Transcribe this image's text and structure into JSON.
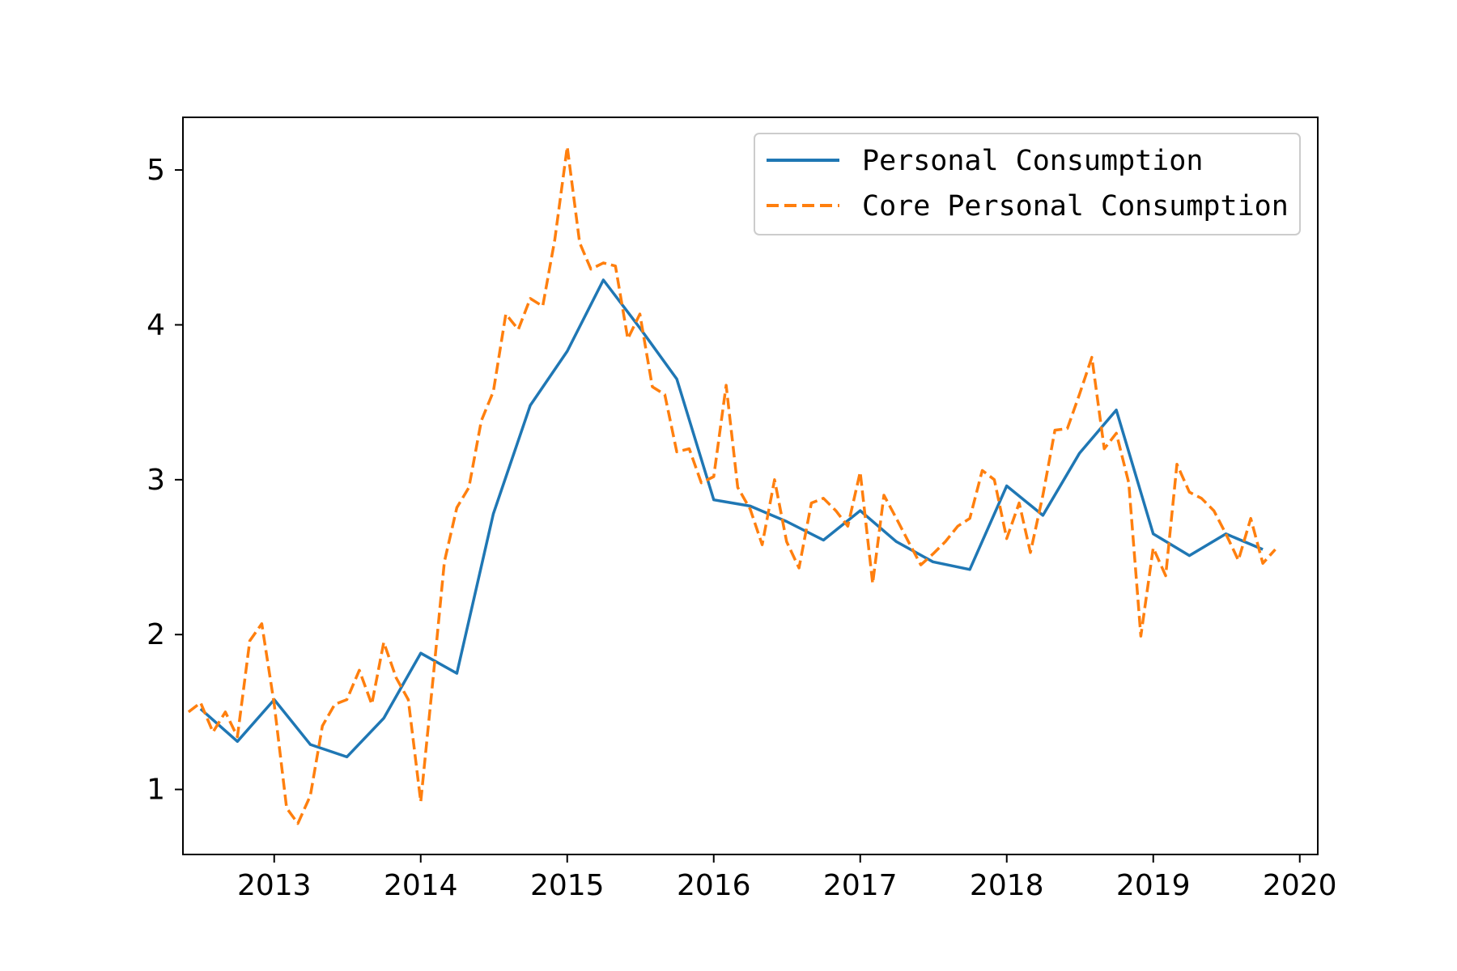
{
  "chart_data": {
    "type": "line",
    "title": "",
    "xlabel": "",
    "ylabel": "",
    "xlim": [
      "2012-05-18",
      "2020-02-15"
    ],
    "ylim": [
      0.58,
      5.34
    ],
    "xticks": [
      "2013",
      "2014",
      "2015",
      "2016",
      "2017",
      "2018",
      "2019",
      "2020"
    ],
    "yticks": [
      "1",
      "2",
      "3",
      "4",
      "5"
    ],
    "grid": false,
    "legend_position": "top-right",
    "series": [
      {
        "name": "Personal Consumption",
        "color": "#1f77b4",
        "style": "solid",
        "points": [
          [
            "2012-07-01",
            1.52
          ],
          [
            "2012-10-01",
            1.31
          ],
          [
            "2013-01-01",
            1.58
          ],
          [
            "2013-04-01",
            1.29
          ],
          [
            "2013-07-01",
            1.21
          ],
          [
            "2013-10-01",
            1.46
          ],
          [
            "2014-01-01",
            1.88
          ],
          [
            "2014-04-01",
            1.75
          ],
          [
            "2014-07-01",
            2.78
          ],
          [
            "2014-10-01",
            3.48
          ],
          [
            "2015-01-01",
            3.83
          ],
          [
            "2015-04-01",
            4.29
          ],
          [
            "2015-07-01",
            3.98
          ],
          [
            "2015-10-01",
            3.65
          ],
          [
            "2016-01-01",
            2.87
          ],
          [
            "2016-04-01",
            2.83
          ],
          [
            "2016-07-01",
            2.73
          ],
          [
            "2016-10-01",
            2.61
          ],
          [
            "2017-01-01",
            2.8
          ],
          [
            "2017-04-01",
            2.6
          ],
          [
            "2017-07-01",
            2.47
          ],
          [
            "2017-10-01",
            2.42
          ],
          [
            "2018-01-01",
            2.96
          ],
          [
            "2018-04-01",
            2.77
          ],
          [
            "2018-07-01",
            3.17
          ],
          [
            "2018-10-01",
            3.45
          ],
          [
            "2019-01-01",
            2.65
          ],
          [
            "2019-04-01",
            2.51
          ],
          [
            "2019-07-01",
            2.65
          ],
          [
            "2019-10-01",
            2.55
          ]
        ]
      },
      {
        "name": "Core Personal Consumption",
        "color": "#ff7f0e",
        "style": "dashed",
        "points": [
          [
            "2012-06-01",
            1.5
          ],
          [
            "2012-07-01",
            1.56
          ],
          [
            "2012-08-01",
            1.37
          ],
          [
            "2012-09-01",
            1.5
          ],
          [
            "2012-10-01",
            1.34
          ],
          [
            "2012-11-01",
            1.96
          ],
          [
            "2012-12-01",
            2.07
          ],
          [
            "2013-01-01",
            1.55
          ],
          [
            "2013-02-01",
            0.88
          ],
          [
            "2013-03-01",
            0.78
          ],
          [
            "2013-04-01",
            0.96
          ],
          [
            "2013-05-01",
            1.41
          ],
          [
            "2013-06-01",
            1.55
          ],
          [
            "2013-07-01",
            1.58
          ],
          [
            "2013-08-01",
            1.77
          ],
          [
            "2013-09-01",
            1.55
          ],
          [
            "2013-10-01",
            1.95
          ],
          [
            "2013-11-01",
            1.72
          ],
          [
            "2013-12-01",
            1.58
          ],
          [
            "2014-01-01",
            0.92
          ],
          [
            "2014-02-01",
            1.72
          ],
          [
            "2014-03-01",
            2.47
          ],
          [
            "2014-04-01",
            2.82
          ],
          [
            "2014-05-01",
            2.95
          ],
          [
            "2014-06-01",
            3.38
          ],
          [
            "2014-07-01",
            3.57
          ],
          [
            "2014-08-01",
            4.07
          ],
          [
            "2014-09-01",
            3.97
          ],
          [
            "2014-10-01",
            4.17
          ],
          [
            "2014-11-01",
            4.12
          ],
          [
            "2014-12-01",
            4.55
          ],
          [
            "2015-01-01",
            5.15
          ],
          [
            "2015-02-01",
            4.53
          ],
          [
            "2015-03-01",
            4.36
          ],
          [
            "2015-04-01",
            4.4
          ],
          [
            "2015-05-01",
            4.38
          ],
          [
            "2015-06-01",
            3.91
          ],
          [
            "2015-07-01",
            4.07
          ],
          [
            "2015-08-01",
            3.6
          ],
          [
            "2015-09-01",
            3.55
          ],
          [
            "2015-10-01",
            3.18
          ],
          [
            "2015-11-01",
            3.2
          ],
          [
            "2015-12-01",
            2.98
          ],
          [
            "2016-01-01",
            3.02
          ],
          [
            "2016-02-01",
            3.61
          ],
          [
            "2016-03-01",
            2.95
          ],
          [
            "2016-04-01",
            2.81
          ],
          [
            "2016-05-01",
            2.58
          ],
          [
            "2016-06-01",
            3.0
          ],
          [
            "2016-07-01",
            2.6
          ],
          [
            "2016-08-01",
            2.43
          ],
          [
            "2016-09-01",
            2.85
          ],
          [
            "2016-10-01",
            2.88
          ],
          [
            "2016-11-01",
            2.8
          ],
          [
            "2016-12-01",
            2.7
          ],
          [
            "2017-01-01",
            3.05
          ],
          [
            "2017-02-01",
            2.33
          ],
          [
            "2017-03-01",
            2.9
          ],
          [
            "2017-04-01",
            2.75
          ],
          [
            "2017-05-01",
            2.6
          ],
          [
            "2017-06-01",
            2.45
          ],
          [
            "2017-07-01",
            2.52
          ],
          [
            "2017-08-01",
            2.6
          ],
          [
            "2017-09-01",
            2.7
          ],
          [
            "2017-10-01",
            2.75
          ],
          [
            "2017-11-01",
            3.06
          ],
          [
            "2017-12-01",
            3.0
          ],
          [
            "2018-01-01",
            2.62
          ],
          [
            "2018-02-01",
            2.85
          ],
          [
            "2018-03-01",
            2.53
          ],
          [
            "2018-04-01",
            2.9
          ],
          [
            "2018-05-01",
            3.32
          ],
          [
            "2018-06-01",
            3.33
          ],
          [
            "2018-07-01",
            3.55
          ],
          [
            "2018-08-01",
            3.79
          ],
          [
            "2018-09-01",
            3.2
          ],
          [
            "2018-10-01",
            3.3
          ],
          [
            "2018-11-01",
            2.98
          ],
          [
            "2018-12-01",
            1.99
          ],
          [
            "2019-01-01",
            2.56
          ],
          [
            "2019-02-01",
            2.38
          ],
          [
            "2019-03-01",
            3.1
          ],
          [
            "2019-04-01",
            2.92
          ],
          [
            "2019-05-01",
            2.88
          ],
          [
            "2019-06-01",
            2.8
          ],
          [
            "2019-07-01",
            2.65
          ],
          [
            "2019-08-01",
            2.48
          ],
          [
            "2019-09-01",
            2.75
          ],
          [
            "2019-10-01",
            2.46
          ],
          [
            "2019-11-01",
            2.55
          ]
        ]
      }
    ]
  }
}
